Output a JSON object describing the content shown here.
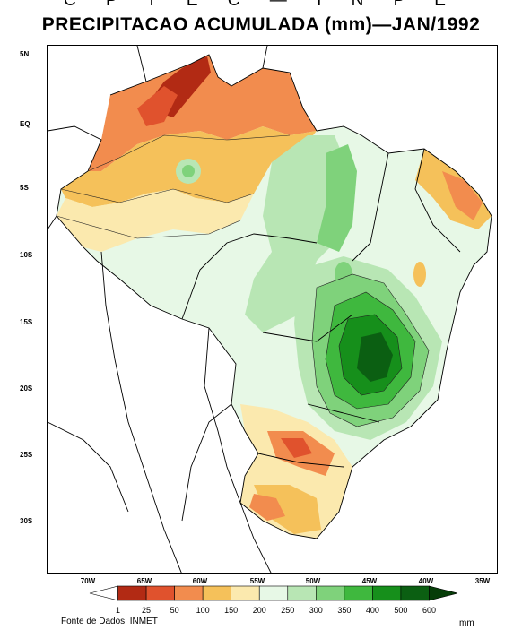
{
  "header": {
    "suptitle": "C P T E C — I N P E",
    "title": "PRECIPITACAO ACUMULADA (mm)—JAN/1992"
  },
  "axes": {
    "lat_labels": [
      "5N",
      "EQ",
      "5S",
      "10S",
      "15S",
      "20S",
      "25S",
      "30S"
    ],
    "lon_labels": [
      "70W",
      "65W",
      "60W",
      "55W",
      "50W",
      "45W",
      "40W",
      "35W"
    ]
  },
  "colorbar": {
    "levels": [
      "1",
      "25",
      "50",
      "100",
      "150",
      "200",
      "250",
      "300",
      "350",
      "400",
      "500",
      "600"
    ],
    "colors": [
      "#ffffff",
      "#b22a14",
      "#e0522d",
      "#f28c4e",
      "#f5c15a",
      "#fbe9ae",
      "#e7f8e6",
      "#b8e6b4",
      "#7fd27b",
      "#3fb83e",
      "#168f1b",
      "#0b5f12",
      "#063d08"
    ],
    "units": "mm"
  },
  "footer": {
    "source": "Fonte de Dados: INMET"
  }
}
